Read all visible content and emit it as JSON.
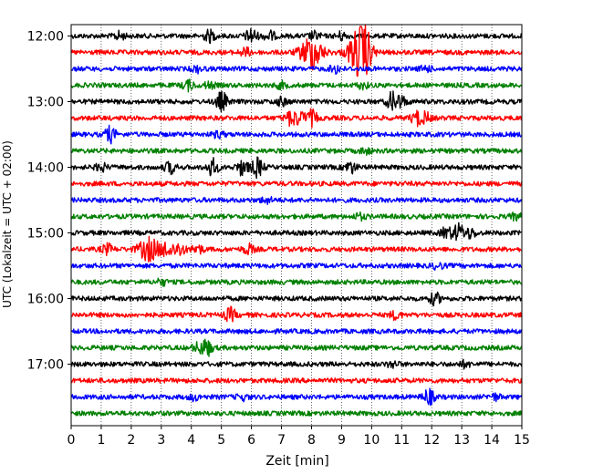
{
  "chart_data": {
    "type": "line",
    "title": "",
    "xlabel": "Zeit  [min]",
    "ylabel": "UTC (Lokalzeit = UTC + 02:00)",
    "xlim": [
      0,
      15
    ],
    "x_ticks": [
      "0",
      "1",
      "2",
      "3",
      "4",
      "5",
      "6",
      "7",
      "8",
      "9",
      "10",
      "11",
      "12",
      "13",
      "14",
      "15"
    ],
    "y_ticks": [
      "12:00",
      "13:00",
      "14:00",
      "15:00",
      "16:00",
      "17:00"
    ],
    "grid": "vertical dotted",
    "trace_colors": [
      "#000000",
      "#ff0000",
      "#0000ff",
      "#008000"
    ],
    "traces": [
      {
        "start": "12:00",
        "color": "#000000",
        "events": [
          [
            1.6,
            4
          ],
          [
            4.6,
            6
          ],
          [
            6.0,
            8
          ],
          [
            6.6,
            5
          ],
          [
            8.1,
            4
          ],
          [
            9.0,
            4
          ]
        ]
      },
      {
        "start": "12:15",
        "color": "#ff0000",
        "events": [
          [
            8.0,
            18
          ],
          [
            9.6,
            26
          ],
          [
            9.8,
            10
          ],
          [
            5.8,
            4
          ]
        ]
      },
      {
        "start": "12:30",
        "color": "#0000ff",
        "events": [
          [
            4.2,
            3
          ],
          [
            8.8,
            4
          ],
          [
            11.8,
            3
          ]
        ]
      },
      {
        "start": "12:45",
        "color": "#008000",
        "events": [
          [
            3.9,
            5
          ],
          [
            4.6,
            3
          ],
          [
            7.0,
            3
          ],
          [
            9.7,
            3
          ]
        ]
      },
      {
        "start": "13:00",
        "color": "#000000",
        "events": [
          [
            5.0,
            10
          ],
          [
            7.0,
            4
          ],
          [
            10.7,
            10
          ],
          [
            11.0,
            5
          ]
        ]
      },
      {
        "start": "13:15",
        "color": "#ff0000",
        "events": [
          [
            7.3,
            7
          ],
          [
            7.6,
            6
          ],
          [
            8.0,
            8
          ],
          [
            11.5,
            7
          ],
          [
            11.8,
            5
          ]
        ]
      },
      {
        "start": "13:30",
        "color": "#0000ff",
        "events": [
          [
            1.3,
            8
          ],
          [
            4.9,
            3
          ]
        ]
      },
      {
        "start": "13:45",
        "color": "#008000",
        "events": [
          [
            9.8,
            3
          ]
        ]
      },
      {
        "start": "14:00",
        "color": "#000000",
        "events": [
          [
            1.0,
            4
          ],
          [
            3.3,
            6
          ],
          [
            4.7,
            9
          ],
          [
            5.7,
            8
          ],
          [
            6.2,
            10
          ],
          [
            9.3,
            6
          ]
        ]
      },
      {
        "start": "14:15",
        "color": "#ff0000",
        "events": []
      },
      {
        "start": "14:30",
        "color": "#0000ff",
        "events": [
          [
            6.5,
            3
          ]
        ]
      },
      {
        "start": "14:45",
        "color": "#008000",
        "events": [
          [
            9.6,
            3
          ],
          [
            14.8,
            3
          ]
        ]
      },
      {
        "start": "15:00",
        "color": "#000000",
        "events": [
          [
            12.5,
            6
          ],
          [
            12.9,
            9
          ],
          [
            13.3,
            5
          ]
        ]
      },
      {
        "start": "15:15",
        "color": "#ff0000",
        "events": [
          [
            1.2,
            5
          ],
          [
            2.6,
            12
          ],
          [
            3.2,
            8
          ],
          [
            3.6,
            7
          ],
          [
            4.2,
            5
          ],
          [
            5.9,
            5
          ]
        ]
      },
      {
        "start": "15:30",
        "color": "#0000ff",
        "events": [
          [
            12.2,
            3
          ]
        ]
      },
      {
        "start": "15:45",
        "color": "#008000",
        "events": [
          [
            3.0,
            3
          ]
        ]
      },
      {
        "start": "16:00",
        "color": "#000000",
        "events": [
          [
            12.1,
            6
          ]
        ]
      },
      {
        "start": "16:15",
        "color": "#ff0000",
        "events": [
          [
            5.3,
            7
          ],
          [
            10.8,
            4
          ]
        ]
      },
      {
        "start": "16:30",
        "color": "#0000ff",
        "events": []
      },
      {
        "start": "16:45",
        "color": "#008000",
        "events": [
          [
            4.5,
            9
          ],
          [
            4.2,
            4
          ]
        ]
      },
      {
        "start": "17:00",
        "color": "#000000",
        "events": [
          [
            10.7,
            3
          ],
          [
            13.1,
            3
          ]
        ]
      },
      {
        "start": "17:15",
        "color": "#ff0000",
        "events": []
      },
      {
        "start": "17:30",
        "color": "#0000ff",
        "events": [
          [
            4.1,
            3
          ],
          [
            5.7,
            3
          ],
          [
            11.9,
            8
          ],
          [
            14.1,
            3
          ]
        ]
      },
      {
        "start": "17:45",
        "color": "#008000",
        "events": []
      }
    ]
  }
}
